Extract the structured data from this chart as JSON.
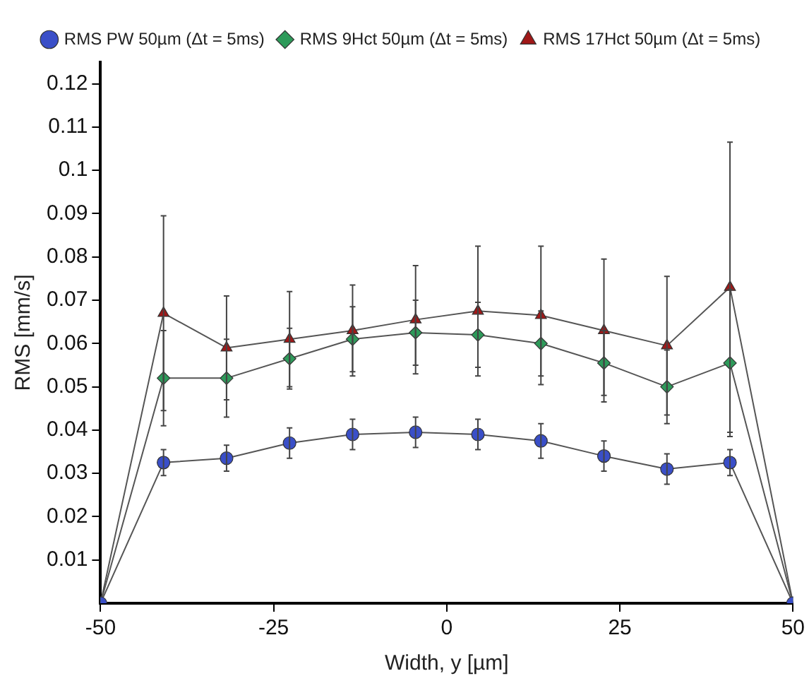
{
  "chart_data": {
    "type": "line",
    "xlabel": "Width, y [µm]",
    "ylabel": "RMS [mm/s]",
    "xlim": [
      -50,
      50
    ],
    "xticks": [
      -50,
      -25,
      0,
      25,
      50
    ],
    "ylim": [
      0,
      0.125
    ],
    "yticks": [
      0.01,
      0.02,
      0.03,
      0.04,
      0.05,
      0.06,
      0.07,
      0.08,
      0.09,
      0.1,
      0.11,
      0.12
    ],
    "grid": false,
    "legend": "top",
    "line_style": "solid",
    "x": [
      -50,
      -40.9,
      -31.8,
      -22.7,
      -13.6,
      -4.5,
      4.5,
      13.6,
      22.7,
      31.8,
      40.9,
      50
    ],
    "series": [
      {
        "name": "RMS PW 50µm (Δt = 5ms)",
        "color": "#3a4fc8",
        "marker": "circle",
        "values": [
          0,
          0.0325,
          0.0335,
          0.037,
          0.039,
          0.0395,
          0.039,
          0.0375,
          0.034,
          0.031,
          0.0325,
          0
        ],
        "errors": [
          null,
          0.003,
          0.003,
          0.0035,
          0.0035,
          0.0035,
          0.0035,
          0.004,
          0.0035,
          0.0035,
          0.003,
          null
        ]
      },
      {
        "name": "RMS 9Hct 50µm (Δt = 5ms)",
        "color": "#2e9a5a",
        "marker": "diamond",
        "values": [
          0,
          0.052,
          0.052,
          0.0565,
          0.061,
          0.0625,
          0.062,
          0.06,
          0.0555,
          0.05,
          0.0555,
          0
        ],
        "errors": [
          null,
          0.011,
          0.009,
          0.007,
          0.0075,
          0.0075,
          0.0075,
          0.0075,
          0.0075,
          0.0085,
          0.017,
          null
        ]
      },
      {
        "name": "RMS 17Hct 50µm (Δt = 5ms)",
        "color": "#a01818",
        "marker": "triangle",
        "values": [
          0,
          0.067,
          0.059,
          0.061,
          0.063,
          0.0655,
          0.0675,
          0.0665,
          0.063,
          0.0595,
          0.073,
          0
        ],
        "errors": [
          null,
          0.0225,
          0.012,
          0.011,
          0.0105,
          0.0125,
          0.015,
          0.016,
          0.0165,
          0.016,
          0.0335,
          null
        ]
      }
    ]
  }
}
